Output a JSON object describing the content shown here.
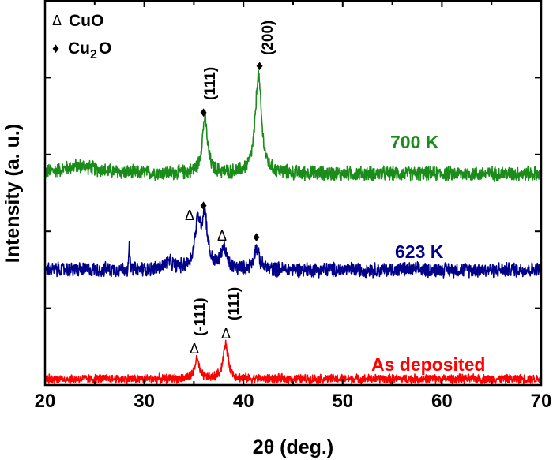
{
  "chart_data": {
    "type": "line",
    "title": "",
    "xlabel": "2θ (deg.)",
    "ylabel": "Intensity (a. u.)",
    "xlim": [
      20,
      70
    ],
    "xticks": [
      "20",
      "30",
      "40",
      "50",
      "60",
      "70"
    ],
    "ylim": [
      0,
      500
    ],
    "y_tick_labels_shown": false,
    "grid": false,
    "legend": {
      "placement": "top-left",
      "entries": [
        {
          "symbol": "Δ",
          "label": "CuO"
        },
        {
          "symbol": "♦",
          "label": "Cu",
          "subscript": "2",
          "label_after": "O"
        }
      ]
    },
    "series": [
      {
        "name": "700 K",
        "color": "#1a8c1a",
        "baseline": 275,
        "noise": 11,
        "peaks": [
          {
            "x": 23.5,
            "height": 10,
            "width": 4
          },
          {
            "x": 36.1,
            "height": 72,
            "width": 0.6
          },
          {
            "x": 41.5,
            "height": 128,
            "width": 0.7
          }
        ],
        "annotations": [
          {
            "x": 36.1,
            "symbol": "♦",
            "label": "(111)"
          },
          {
            "x": 41.9,
            "symbol": "♦",
            "label": "(200)"
          }
        ]
      },
      {
        "name": "623 K",
        "color": "#00008b",
        "baseline": 150,
        "noise": 11,
        "peaks": [
          {
            "x": 28.5,
            "height": 35,
            "width": 0.08
          },
          {
            "x": 32.5,
            "height": 8,
            "width": 1.2
          },
          {
            "x": 35.4,
            "height": 58,
            "width": 0.7
          },
          {
            "x": 36.1,
            "height": 66,
            "width": 0.6
          },
          {
            "x": 38.0,
            "height": 28,
            "width": 0.6
          },
          {
            "x": 41.3,
            "height": 28,
            "width": 0.6
          }
        ],
        "annotations": [
          {
            "x": 35.4,
            "symbol": "Δ"
          },
          {
            "x": 36.1,
            "symbol": "♦"
          },
          {
            "x": 37.8,
            "symbol": "Δ"
          },
          {
            "x": 41.5,
            "symbol": "♦"
          }
        ]
      },
      {
        "name": "As deposited",
        "color": "#ff0000",
        "baseline": 8,
        "noise": 7,
        "peaks": [
          {
            "x": 35.3,
            "height": 26,
            "width": 0.5
          },
          {
            "x": 38.2,
            "height": 44,
            "width": 0.6
          }
        ],
        "annotations": [
          {
            "x": 35.3,
            "symbol": "Δ",
            "label": "(-111)"
          },
          {
            "x": 38.0,
            "symbol": "Δ",
            "label": "(111)"
          }
        ]
      }
    ]
  }
}
